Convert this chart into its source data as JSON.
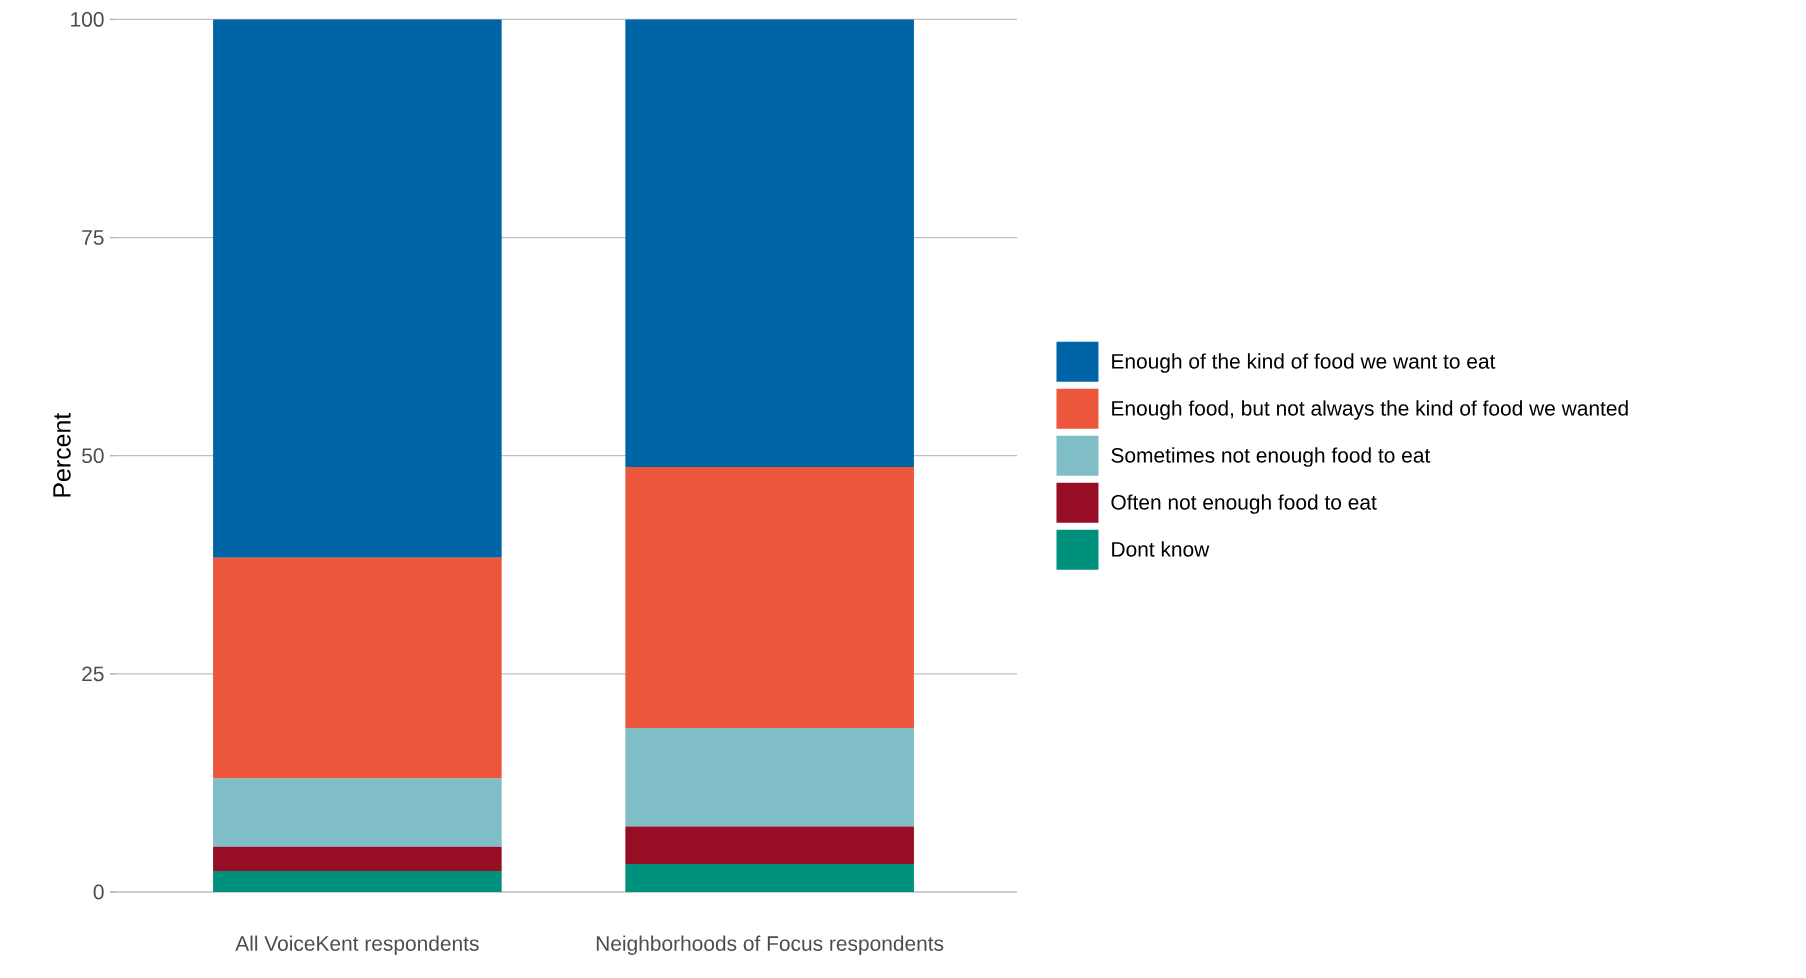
{
  "chart_data": {
    "type": "bar",
    "stacked": true,
    "ylabel": "Percent",
    "categories": [
      "All VoiceKent respondents",
      "Neighborhoods of Focus respondents"
    ],
    "series": [
      {
        "name": "Dont know",
        "color": "#00917c",
        "values": [
          2.4,
          3.2
        ]
      },
      {
        "name": "Often not enough food to eat",
        "color": "#970d25",
        "values": [
          2.8,
          4.3
        ]
      },
      {
        "name": "Sometimes not enough food to eat",
        "color": "#7fbdc7",
        "values": [
          7.8,
          11.3
        ]
      },
      {
        "name": "Enough food, but not always the kind of food we wanted",
        "color": "#ec573c",
        "values": [
          25.3,
          29.9
        ]
      },
      {
        "name": "Enough of the kind of food we want to eat",
        "color": "#0065a7",
        "values": [
          61.7,
          51.3
        ]
      }
    ],
    "ylim": [
      0,
      100
    ],
    "yticks": [
      0,
      25,
      50,
      75,
      100
    ],
    "grid": "y",
    "legend": "right"
  }
}
